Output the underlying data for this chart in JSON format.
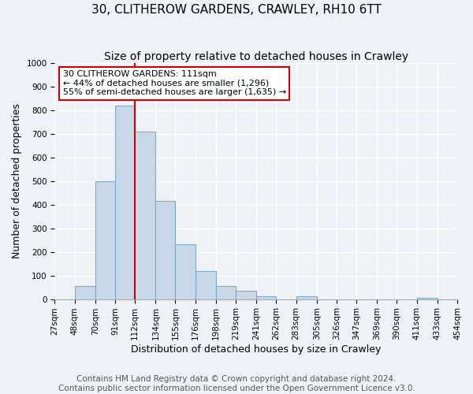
{
  "title": "30, CLITHEROW GARDENS, CRAWLEY, RH10 6TT",
  "subtitle": "Size of property relative to detached houses in Crawley",
  "xlabel": "Distribution of detached houses by size in Crawley",
  "ylabel": "Number of detached properties",
  "bin_labels": [
    "27sqm",
    "48sqm",
    "70sqm",
    "91sqm",
    "112sqm",
    "134sqm",
    "155sqm",
    "176sqm",
    "198sqm",
    "219sqm",
    "241sqm",
    "262sqm",
    "283sqm",
    "305sqm",
    "326sqm",
    "347sqm",
    "369sqm",
    "390sqm",
    "411sqm",
    "433sqm",
    "454sqm"
  ],
  "bar_values": [
    0,
    57,
    500,
    820,
    710,
    415,
    232,
    118,
    57,
    35,
    12,
    0,
    11,
    0,
    0,
    0,
    0,
    0,
    5,
    0,
    0
  ],
  "bar_color": "#c8d8e8",
  "bar_edgecolor": "#7fa8c8",
  "property_line_color": "#cc0000",
  "bin_edges_values": [
    27,
    48,
    70,
    91,
    112,
    134,
    155,
    176,
    198,
    219,
    241,
    262,
    283,
    305,
    326,
    347,
    369,
    390,
    411,
    433,
    454
  ],
  "annotation_title": "30 CLITHEROW GARDENS: 111sqm",
  "annotation_line1": "← 44% of detached houses are smaller (1,296)",
  "annotation_line2": "55% of semi-detached houses are larger (1,635) →",
  "annotation_box_edgecolor": "#cc0000",
  "ylim": [
    0,
    1000
  ],
  "footer1": "Contains HM Land Registry data © Crown copyright and database right 2024.",
  "footer2": "Contains public sector information licensed under the Open Government Licence v3.0.",
  "background_color": "#eef2f7",
  "grid_color": "#ffffff",
  "title_fontsize": 11,
  "subtitle_fontsize": 10,
  "axis_label_fontsize": 9,
  "tick_fontsize": 7.5,
  "annotation_fontsize": 8,
  "footer_fontsize": 7.5
}
